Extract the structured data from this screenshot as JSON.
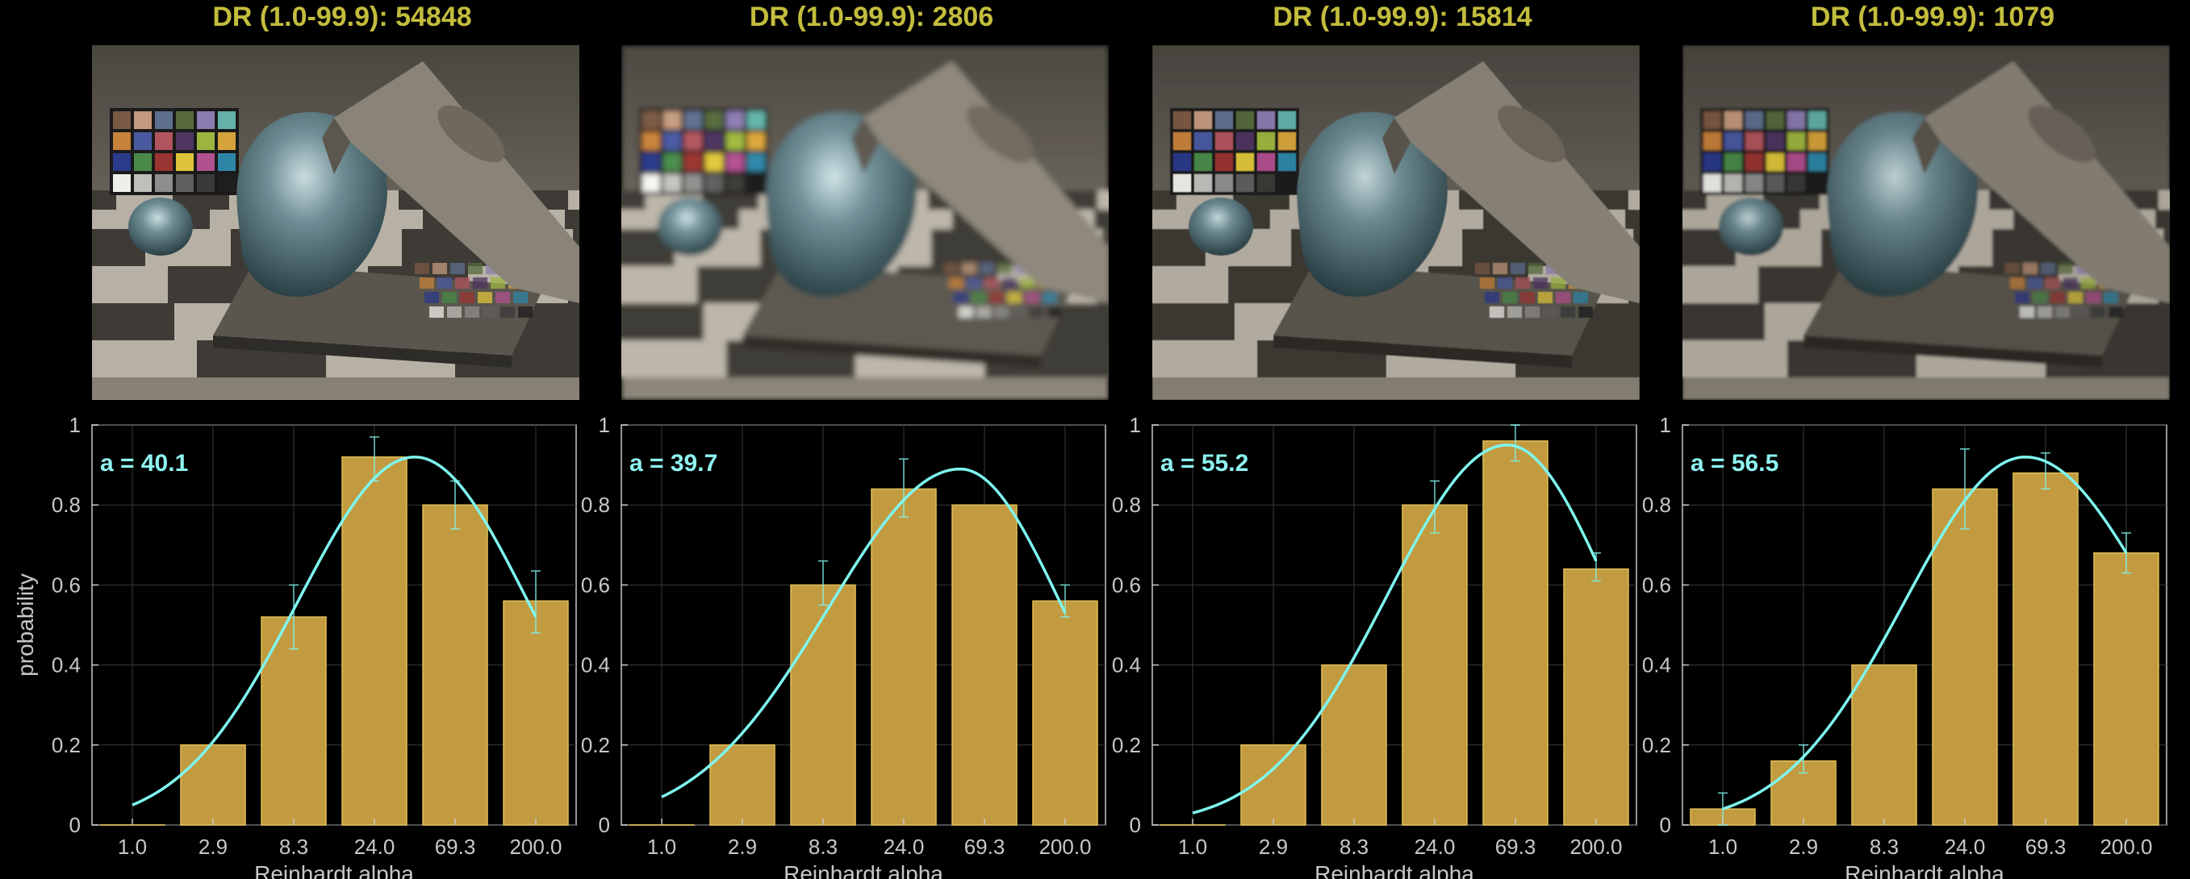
{
  "colors": {
    "title": "#c3bd3d",
    "bar_fill": "#c29a40",
    "bar_edge": "#e3bf55",
    "curve": "#7ff6ef",
    "axis": "#c8c8c8",
    "grid": "#3a3a3a",
    "background": "#000000"
  },
  "shared": {
    "ylabel": "probability",
    "xlabel": "Reinhardt alpha"
  },
  "chart_data": [
    {
      "type": "bar",
      "title": "DR (1.0-99.9): 54848",
      "annotation": "a = 40.1",
      "categories": [
        "1.0",
        "2.9",
        "8.3",
        "24.0",
        "69.3",
        "200.0"
      ],
      "values": [
        0.0,
        0.2,
        0.52,
        0.92,
        0.8,
        0.56
      ],
      "error_low": [
        0.0,
        0.2,
        0.44,
        0.86,
        0.74,
        0.48
      ],
      "error_high": [
        0.0,
        0.2,
        0.6,
        0.97,
        0.86,
        0.635
      ],
      "fit_curve": {
        "peak_category_index": 3.5,
        "peak_value": 0.92,
        "start_value": 0.05,
        "end_value": 0.52
      },
      "ylim": [
        0,
        1
      ],
      "yticks": [
        "0",
        "0.2",
        "0.4",
        "0.6",
        "0.8",
        "1"
      ],
      "xlabel": "Reinhardt alpha",
      "ylabel": "probability",
      "grid": true
    },
    {
      "type": "bar",
      "title": "DR (1.0-99.9): 2806",
      "annotation": "a = 39.7",
      "categories": [
        "1.0",
        "2.9",
        "8.3",
        "24.0",
        "69.3",
        "200.0"
      ],
      "values": [
        0.0,
        0.2,
        0.6,
        0.84,
        0.8,
        0.56
      ],
      "error_low": [
        0.0,
        0.2,
        0.55,
        0.77,
        0.8,
        0.52
      ],
      "error_high": [
        0.0,
        0.2,
        0.66,
        0.915,
        0.8,
        0.6
      ],
      "fit_curve": {
        "peak_category_index": 3.7,
        "peak_value": 0.89,
        "start_value": 0.07,
        "end_value": 0.53
      },
      "ylim": [
        0,
        1
      ],
      "yticks": [
        "0",
        "0.2",
        "0.4",
        "0.6",
        "0.8",
        "1"
      ],
      "xlabel": "Reinhardt alpha",
      "ylabel": "",
      "grid": true
    },
    {
      "type": "bar",
      "title": "DR (1.0-99.9): 15814",
      "annotation": "a = 55.2",
      "categories": [
        "1.0",
        "2.9",
        "8.3",
        "24.0",
        "69.3",
        "200.0"
      ],
      "values": [
        0.0,
        0.2,
        0.4,
        0.8,
        0.96,
        0.64
      ],
      "error_low": [
        0.0,
        0.2,
        0.4,
        0.73,
        0.91,
        0.61
      ],
      "error_high": [
        0.0,
        0.2,
        0.4,
        0.86,
        1.0,
        0.68
      ],
      "fit_curve": {
        "peak_category_index": 3.9,
        "peak_value": 0.95,
        "start_value": 0.03,
        "end_value": 0.66
      },
      "ylim": [
        0,
        1
      ],
      "yticks": [
        "0",
        "0.2",
        "0.4",
        "0.6",
        "0.8",
        "1"
      ],
      "xlabel": "Reinhardt alpha",
      "ylabel": "",
      "grid": true
    },
    {
      "type": "bar",
      "title": "DR (1.0-99.9): 1079",
      "annotation": "a = 56.5",
      "categories": [
        "1.0",
        "2.9",
        "8.3",
        "24.0",
        "69.3",
        "200.0"
      ],
      "values": [
        0.04,
        0.16,
        0.4,
        0.84,
        0.88,
        0.68
      ],
      "error_low": [
        0.0,
        0.13,
        0.4,
        0.74,
        0.84,
        0.63
      ],
      "error_high": [
        0.08,
        0.2,
        0.4,
        0.94,
        0.93,
        0.73
      ],
      "fit_curve": {
        "peak_category_index": 3.75,
        "peak_value": 0.92,
        "start_value": 0.04,
        "end_value": 0.68
      },
      "ylim": [
        0,
        1
      ],
      "yticks": [
        "0",
        "0.2",
        "0.4",
        "0.6",
        "0.8",
        "1"
      ],
      "xlabel": "Reinhardt alpha",
      "ylabel": "",
      "grid": true
    }
  ],
  "renders": [
    {
      "name": "render-panel-1",
      "blur": 0.0,
      "brightness": 1.0
    },
    {
      "name": "render-panel-2",
      "blur": 3.5,
      "brightness": 1.07
    },
    {
      "name": "render-panel-3",
      "blur": 0.6,
      "brightness": 0.92
    },
    {
      "name": "render-panel-4",
      "blur": 1.8,
      "brightness": 0.86
    }
  ]
}
